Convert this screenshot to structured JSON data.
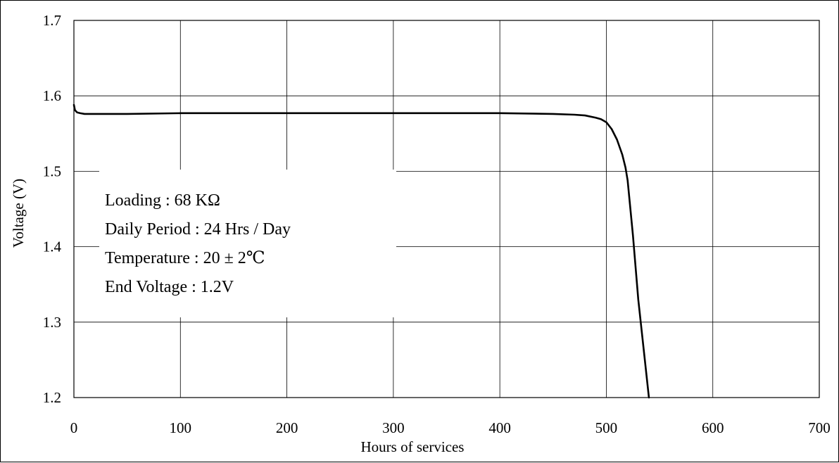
{
  "chart_data": {
    "type": "line",
    "title": "",
    "xlabel": "Hours of services",
    "ylabel": "Voltage (V)",
    "xlim": [
      0,
      700
    ],
    "ylim": [
      1.2,
      1.7
    ],
    "x_ticks": [
      "0",
      "100",
      "200",
      "300",
      "400",
      "500",
      "600",
      "700"
    ],
    "y_ticks": [
      "1.2",
      "1.3",
      "1.4",
      "1.5",
      "1.6",
      "1.7"
    ],
    "grid": true,
    "legend": "none",
    "line_color": "#000000",
    "annotations": [
      "Loading : 68 KΩ",
      "Daily Period : 24 Hrs / Day",
      "Temperature : 20 ± 2℃",
      "End Voltage :  1.2V"
    ],
    "series": [
      {
        "x": [
          0,
          1,
          3,
          6,
          10,
          20,
          50,
          100,
          200,
          300,
          400,
          450,
          470,
          480,
          490,
          495,
          500,
          505,
          510,
          515,
          518,
          520,
          525,
          530,
          535,
          540
        ],
        "y": [
          1.588,
          1.581,
          1.578,
          1.577,
          1.576,
          1.576,
          1.576,
          1.577,
          1.577,
          1.577,
          1.577,
          1.576,
          1.575,
          1.574,
          1.571,
          1.569,
          1.565,
          1.556,
          1.542,
          1.522,
          1.505,
          1.488,
          1.415,
          1.33,
          1.265,
          1.2
        ]
      }
    ]
  }
}
